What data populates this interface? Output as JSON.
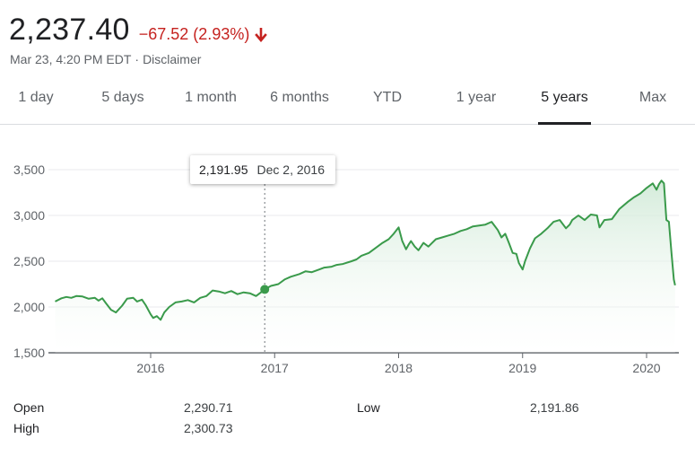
{
  "quote": {
    "price": "2,237.40",
    "change": "−67.52 (2.93%)",
    "timestamp": "Mar 23, 4:20 PM EDT",
    "separator": "·",
    "disclaimer": "Disclaimer",
    "change_color": "#c5221f",
    "arrow_icon": "arrow-down-icon"
  },
  "tabs": [
    {
      "label": "1 day",
      "active": false
    },
    {
      "label": "5 days",
      "active": false
    },
    {
      "label": "1 month",
      "active": false
    },
    {
      "label": "6 months",
      "active": false
    },
    {
      "label": "YTD",
      "active": false
    },
    {
      "label": "1 year",
      "active": false
    },
    {
      "label": "5 years",
      "active": true
    },
    {
      "label": "Max",
      "active": false
    }
  ],
  "tooltip": {
    "value": "2,191.95",
    "date": "Dec 2, 2016"
  },
  "stats": {
    "open_label": "Open",
    "open_value": "2,290.71",
    "high_label": "High",
    "high_value": "2,300.73",
    "low_label": "Low",
    "low_value": "2,191.86"
  },
  "chart_data": {
    "type": "area",
    "line_color": "#3a9a4b",
    "fill_color": "#e6f4ea",
    "ylim": [
      1500,
      3600
    ],
    "xlim": [
      2015.23,
      2020.23
    ],
    "y_ticks": [
      "1,500",
      "2,000",
      "2,500",
      "3,000",
      "3,500"
    ],
    "y_tick_values": [
      1500,
      2000,
      2500,
      3000,
      3500
    ],
    "x_ticks": [
      "2016",
      "2017",
      "2018",
      "2019",
      "2020"
    ],
    "x_tick_values": [
      2016,
      2017,
      2018,
      2019,
      2020
    ],
    "grid": true,
    "highlight": {
      "x": 2016.92,
      "y": 2191.95
    },
    "series": [
      {
        "x": [
          2015.23,
          2015.28,
          2015.32,
          2015.36,
          2015.4,
          2015.45,
          2015.5,
          2015.55,
          2015.58,
          2015.61,
          2015.64,
          2015.68,
          2015.72,
          2015.77,
          2015.81,
          2015.86,
          2015.89,
          2015.93,
          2015.96,
          2016.0,
          2016.02,
          2016.05,
          2016.08,
          2016.11,
          2016.15,
          2016.2,
          2016.25,
          2016.3,
          2016.35,
          2016.4,
          2016.45,
          2016.5,
          2016.55,
          2016.6,
          2016.65,
          2016.7,
          2016.75,
          2016.8,
          2016.85,
          2016.89,
          2016.92,
          2016.97,
          2017.03,
          2017.08,
          2017.13,
          2017.2,
          2017.25,
          2017.3,
          2017.36,
          2017.4,
          2017.46,
          2017.5,
          2017.55,
          2017.62,
          2017.66,
          2017.7,
          2017.76,
          2017.82,
          2017.87,
          2017.92,
          2017.96,
          2018.0,
          2018.03,
          2018.06,
          2018.08,
          2018.1,
          2018.13,
          2018.16,
          2018.2,
          2018.24,
          2018.3,
          2018.35,
          2018.4,
          2018.45,
          2018.5,
          2018.55,
          2018.6,
          2018.65,
          2018.7,
          2018.75,
          2018.8,
          2018.83,
          2018.86,
          2018.89,
          2018.92,
          2018.95,
          2018.97,
          2019.0,
          2019.02,
          2019.06,
          2019.1,
          2019.15,
          2019.2,
          2019.25,
          2019.3,
          2019.35,
          2019.38,
          2019.4,
          2019.45,
          2019.5,
          2019.55,
          2019.6,
          2019.62,
          2019.66,
          2019.72,
          2019.78,
          2019.85,
          2019.9,
          2019.95,
          2020.0,
          2020.05,
          2020.08,
          2020.1,
          2020.12,
          2020.14,
          2020.16,
          2020.18,
          2020.2,
          2020.22,
          2020.23
        ],
        "y": [
          2060,
          2095,
          2110,
          2100,
          2120,
          2115,
          2090,
          2100,
          2070,
          2095,
          2040,
          1970,
          1940,
          2015,
          2090,
          2100,
          2060,
          2080,
          2020,
          1920,
          1880,
          1900,
          1860,
          1940,
          2000,
          2050,
          2060,
          2075,
          2050,
          2100,
          2120,
          2180,
          2170,
          2150,
          2175,
          2140,
          2160,
          2150,
          2120,
          2160,
          2192,
          2230,
          2250,
          2300,
          2330,
          2360,
          2390,
          2380,
          2410,
          2430,
          2440,
          2460,
          2470,
          2500,
          2520,
          2560,
          2590,
          2650,
          2700,
          2740,
          2800,
          2870,
          2720,
          2630,
          2680,
          2720,
          2660,
          2620,
          2700,
          2660,
          2740,
          2760,
          2780,
          2800,
          2830,
          2850,
          2880,
          2890,
          2900,
          2930,
          2840,
          2760,
          2800,
          2700,
          2590,
          2580,
          2480,
          2410,
          2500,
          2640,
          2750,
          2800,
          2860,
          2930,
          2950,
          2860,
          2900,
          2950,
          3000,
          2950,
          3010,
          3000,
          2870,
          2950,
          2960,
          3070,
          3150,
          3200,
          3240,
          3300,
          3350,
          3280,
          3340,
          3380,
          3350,
          2950,
          2930,
          2600,
          2300,
          2237
        ]
      }
    ]
  }
}
